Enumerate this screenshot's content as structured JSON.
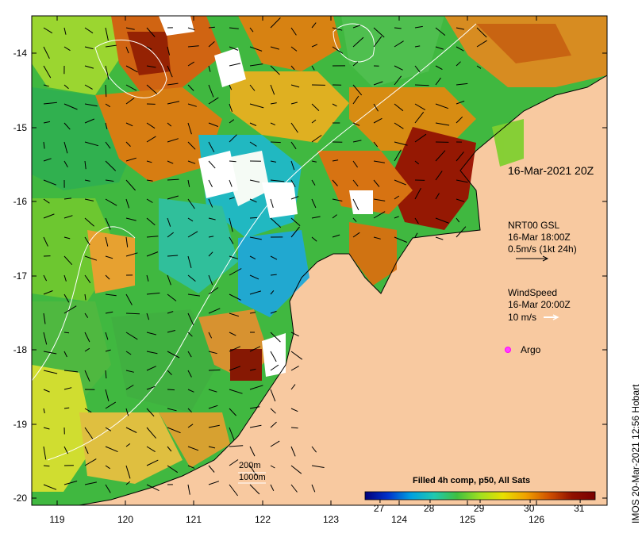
{
  "map_title": "16-Mar-2021 20Z",
  "current_legend": {
    "name": "NRT00 GSL",
    "time": "16-Mar 18:00Z",
    "scale": "0.5m/s (1kt 24h)"
  },
  "wind_legend": {
    "name": "WindSpeed",
    "time": "16-Mar 20:00Z",
    "scale": "10 m/s"
  },
  "argo_label": "Argo",
  "isobath_legend": {
    "shallow": "200m",
    "deep": "1000m"
  },
  "colorbar": {
    "title": "Filled 4h comp, p50, All Sats",
    "ticks": [
      "27",
      "28",
      "29",
      "30",
      "31"
    ],
    "range": [
      26.7,
      31.3
    ],
    "colors": [
      "#00007a",
      "#0033cc",
      "#00a0e0",
      "#20c8b0",
      "#40c040",
      "#a0e020",
      "#e8e000",
      "#f0a000",
      "#d05000",
      "#901000",
      "#7a0000"
    ]
  },
  "credit": "IMOS 20-Mar-2021 12:56 Hobart",
  "axes": {
    "lat_labels": [
      "-14",
      "-15",
      "-16",
      "-17",
      "-18",
      "-19",
      "-20"
    ],
    "lon_labels": [
      "119",
      "120",
      "121",
      "122",
      "123",
      "124",
      "125",
      "126"
    ]
  },
  "colors": {
    "land": "#f8c9a0",
    "frame": "#000000"
  }
}
